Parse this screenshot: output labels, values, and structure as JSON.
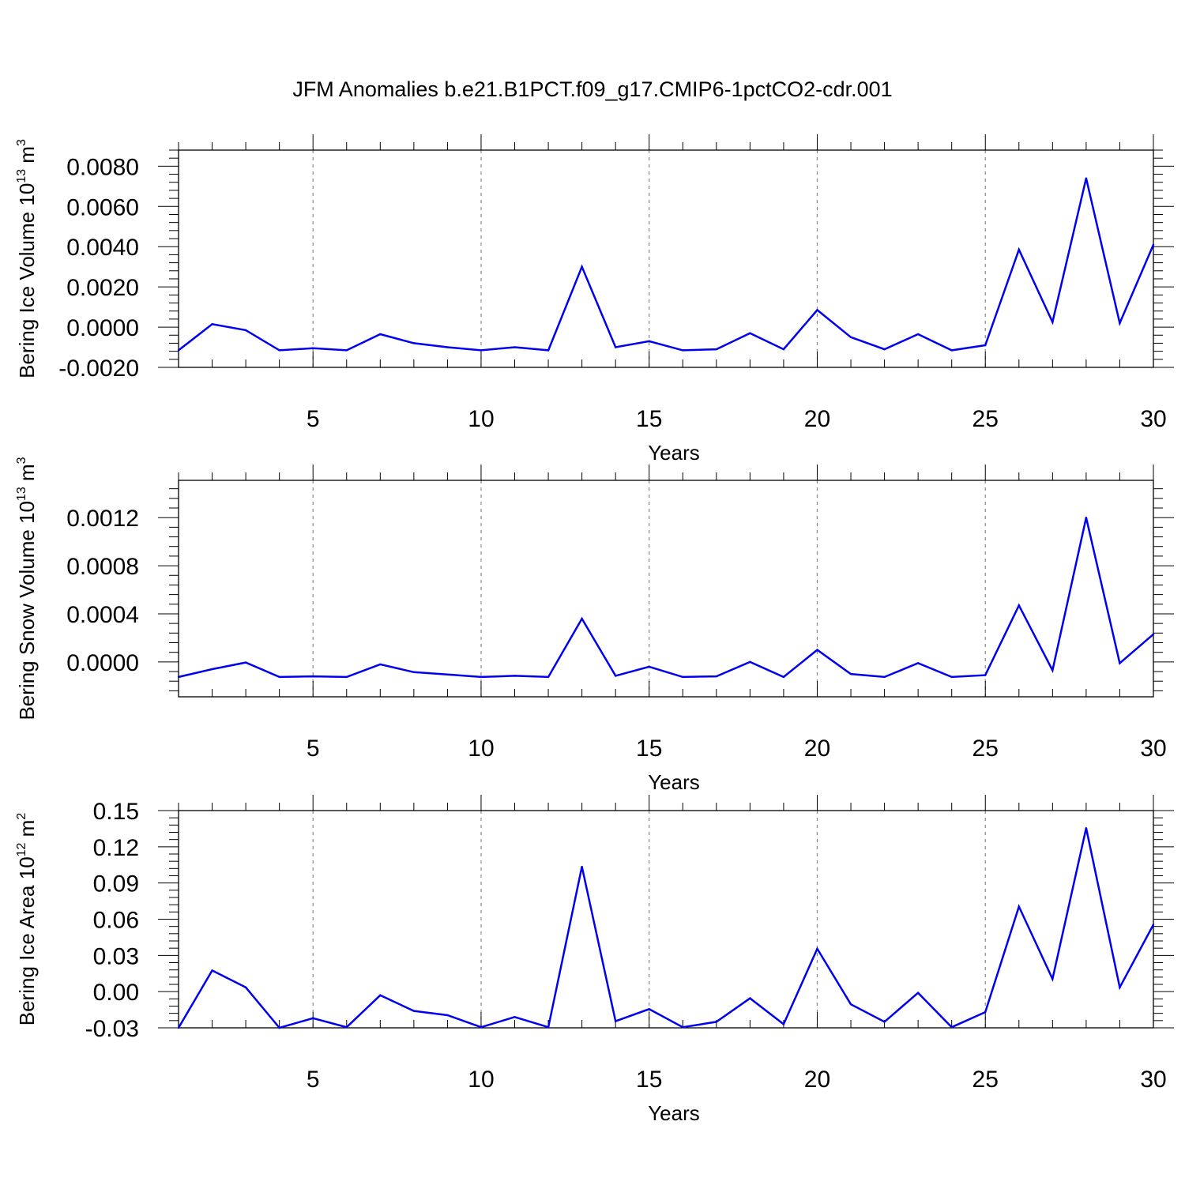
{
  "title": "JFM Anomalies b.e21.B1PCT.f09_g17.CMIP6-1pctCO2-cdr.001",
  "line_color": "#0000ee",
  "chart_data": [
    {
      "type": "line",
      "title": "",
      "ylabel_main": "Bering Ice Volume 10",
      "ylabel_sup1": "13",
      "ylabel_unit": " m",
      "ylabel_sup2": "3",
      "xlabel": "Years",
      "xlim": [
        1,
        30
      ],
      "ylim": [
        -0.002,
        0.0088
      ],
      "xticks": [
        5,
        10,
        15,
        20,
        25,
        30
      ],
      "xtick_labels": [
        "5",
        "10",
        "15",
        "20",
        "25",
        "30"
      ],
      "yticks": [
        -0.002,
        0.0,
        0.002,
        0.004,
        0.006,
        0.008
      ],
      "ytick_labels": [
        "-0.0020",
        "0.0000",
        "0.0020",
        "0.0040",
        "0.0060",
        "0.0080"
      ],
      "grid": "vertical dashed at major x ticks",
      "x": [
        1,
        2,
        3,
        4,
        5,
        6,
        7,
        8,
        9,
        10,
        11,
        12,
        13,
        14,
        15,
        16,
        17,
        18,
        19,
        20,
        21,
        22,
        23,
        24,
        25,
        26,
        27,
        28,
        29,
        30
      ],
      "values": [
        -0.00115,
        0.00015,
        -0.00015,
        -0.00115,
        -0.00105,
        -0.00115,
        -0.00035,
        -0.0008,
        -0.001,
        -0.00115,
        -0.001,
        -0.00115,
        0.003,
        -0.001,
        -0.0007,
        -0.00115,
        -0.0011,
        -0.0003,
        -0.0011,
        0.00085,
        -0.0005,
        -0.0011,
        -0.00035,
        -0.00115,
        -0.0009,
        0.00385,
        0.00025,
        0.0074,
        0.0002,
        0.0041
      ]
    },
    {
      "type": "line",
      "title": "",
      "ylabel_main": "Bering Snow Volume 10",
      "ylabel_sup1": "13",
      "ylabel_unit": " m",
      "ylabel_sup2": "3",
      "xlabel": "Years",
      "xlim": [
        1,
        30
      ],
      "ylim": [
        -0.00029,
        0.00151
      ],
      "xticks": [
        5,
        10,
        15,
        20,
        25,
        30
      ],
      "xtick_labels": [
        "5",
        "10",
        "15",
        "20",
        "25",
        "30"
      ],
      "yticks": [
        0.0,
        0.0004,
        0.0008,
        0.0012
      ],
      "ytick_labels": [
        "0.0000",
        "0.0004",
        "0.0008",
        "0.0012"
      ],
      "grid": "vertical dashed at major x ticks",
      "x": [
        1,
        2,
        3,
        4,
        5,
        6,
        7,
        8,
        9,
        10,
        11,
        12,
        13,
        14,
        15,
        16,
        17,
        18,
        19,
        20,
        21,
        22,
        23,
        24,
        25,
        26,
        27,
        28,
        29,
        30
      ],
      "values": [
        -0.000125,
        -6e-05,
        -5e-06,
        -0.000125,
        -0.00012,
        -0.000125,
        -2e-05,
        -8.5e-05,
        -0.000105,
        -0.000125,
        -0.000115,
        -0.000125,
        0.00036,
        -0.000115,
        -4e-05,
        -0.000125,
        -0.00012,
        0.0,
        -0.000125,
        0.0001,
        -0.0001,
        -0.000125,
        -1e-05,
        -0.000125,
        -0.00011,
        0.00047,
        -7e-05,
        0.0012,
        -1e-05,
        0.00023
      ]
    },
    {
      "type": "line",
      "title": "",
      "ylabel_main": "Bering Ice Area 10",
      "ylabel_sup1": "12",
      "ylabel_unit": " m",
      "ylabel_sup2": "2",
      "xlabel": "Years",
      "xlim": [
        1,
        30
      ],
      "ylim": [
        -0.03,
        0.15
      ],
      "xticks": [
        5,
        10,
        15,
        20,
        25,
        30
      ],
      "xtick_labels": [
        "5",
        "10",
        "15",
        "20",
        "25",
        "30"
      ],
      "yticks": [
        -0.03,
        0.0,
        0.03,
        0.06,
        0.09,
        0.12,
        0.15
      ],
      "ytick_labels": [
        "-0.03",
        "0.00",
        "0.03",
        "0.06",
        "0.09",
        "0.12",
        "0.15"
      ],
      "grid": "vertical dashed at major x ticks",
      "x": [
        1,
        2,
        3,
        4,
        5,
        6,
        7,
        8,
        9,
        10,
        11,
        12,
        13,
        14,
        15,
        16,
        17,
        18,
        19,
        20,
        21,
        22,
        23,
        24,
        25,
        26,
        27,
        28,
        29,
        30
      ],
      "values": [
        -0.03,
        0.0175,
        0.0035,
        -0.03,
        -0.022,
        -0.0295,
        -0.003,
        -0.016,
        -0.0195,
        -0.0295,
        -0.021,
        -0.0295,
        0.1035,
        -0.0245,
        -0.0145,
        -0.0295,
        -0.025,
        -0.0055,
        -0.027,
        0.0355,
        -0.0105,
        -0.025,
        -0.001,
        -0.0295,
        -0.017,
        0.0705,
        0.0105,
        0.1355,
        0.0035,
        0.0555
      ]
    }
  ]
}
